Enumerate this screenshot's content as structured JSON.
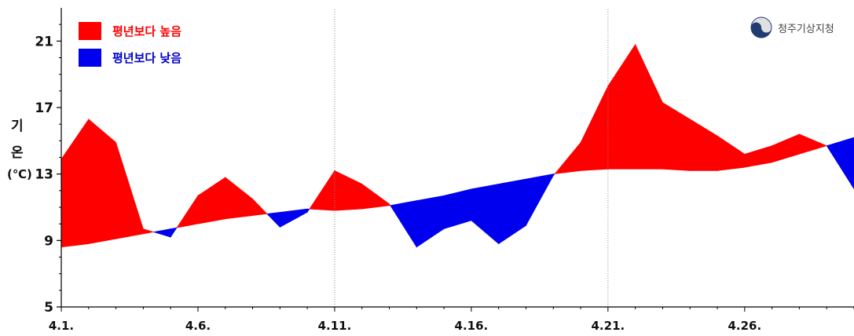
{
  "chart_data": {
    "type": "area",
    "ylabel": [
      "기",
      "온",
      "(℃)"
    ],
    "ylim": [
      5,
      23
    ],
    "yticks": [
      5,
      9,
      13,
      17,
      21
    ],
    "xticks": [
      "4.1.",
      "4.6.",
      "4.11.",
      "4.16.",
      "4.21.",
      "4.26."
    ],
    "vertical_gridlines_at": [
      "4.11.",
      "4.21."
    ],
    "x": [
      1,
      2,
      3,
      4,
      5,
      6,
      7,
      8,
      9,
      10,
      11,
      12,
      13,
      14,
      15,
      16,
      17,
      18,
      19,
      20,
      21,
      22,
      23,
      24,
      25,
      26,
      27,
      28,
      29,
      30
    ],
    "series": [
      {
        "values": [
          13.9,
          16.3,
          14.9,
          9.7,
          9.2,
          11.7,
          12.8,
          11.5,
          9.8,
          10.7,
          13.2,
          12.4,
          11.2,
          8.6,
          9.7,
          10.2,
          8.8,
          9.9,
          12.9,
          14.9,
          18.3,
          20.8,
          17.3,
          16.3,
          15.3,
          14.2,
          14.7,
          15.4,
          14.7,
          12.1
        ]
      },
      {
        "values": [
          8.6,
          8.8,
          9.1,
          9.4,
          9.7,
          10.0,
          10.3,
          10.5,
          10.7,
          10.9,
          10.8,
          10.9,
          11.1,
          11.4,
          11.7,
          12.1,
          12.4,
          12.7,
          13.0,
          13.2,
          13.3,
          13.3,
          13.3,
          13.2,
          13.2,
          13.4,
          13.7,
          14.2,
          14.7,
          15.2
        ]
      }
    ],
    "legend": [
      {
        "label": "평년보다 높음",
        "color": "#ff0000"
      },
      {
        "label": "평년보다 낮음",
        "color": "#0000ee"
      }
    ],
    "grid": false,
    "legend_position": "top-left"
  },
  "logo": {
    "text": "청주기상지청"
  },
  "colors": {
    "above": "#ff0000",
    "below": "#0000ee",
    "axis": "#000000"
  }
}
